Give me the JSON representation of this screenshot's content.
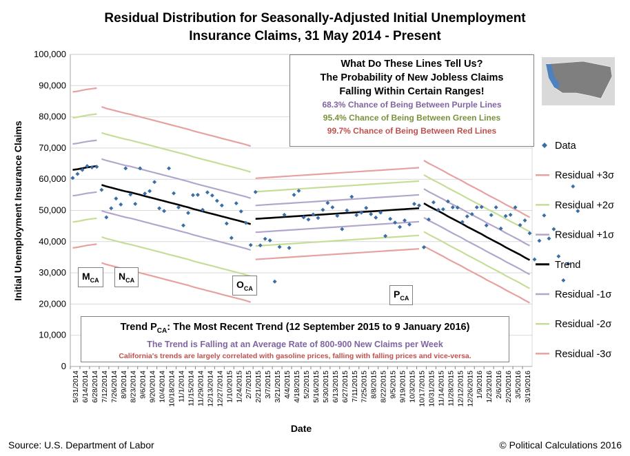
{
  "chart_data": {
    "type": "line",
    "title_line1": "Residual Distribution for Seasonally-Adjusted Initial Unemployment",
    "title_line2": "Insurance Claims, 31 May 2014 - Present",
    "xlabel": "Date",
    "ylabel": "Initial Unemployment Insurance Claims",
    "ylim": [
      0,
      100000
    ],
    "y_ticks": [
      "0",
      "10,000",
      "20,000",
      "30,000",
      "40,000",
      "50,000",
      "60,000",
      "70,000",
      "80,000",
      "90,000",
      "100,000"
    ],
    "x_ticks": [
      "5/31/2014",
      "6/14/2014",
      "6/28/2014",
      "7/12/2014",
      "7/26/2014",
      "8/9/2014",
      "8/23/2014",
      "9/6/2014",
      "9/20/2014",
      "10/4/2014",
      "10/18/2014",
      "11/1/2014",
      "11/15/2014",
      "11/29/2014",
      "12/13/2014",
      "12/27/2014",
      "1/10/2015",
      "1/24/2015",
      "2/7/2015",
      "2/21/2015",
      "3/7/2015",
      "3/21/2015",
      "4/4/2015",
      "4/18/2015",
      "5/2/2015",
      "5/16/2015",
      "5/30/2015",
      "6/13/2015",
      "6/27/2015",
      "7/11/2015",
      "7/25/2015",
      "8/8/2015",
      "8/22/2015",
      "9/5/2015",
      "9/19/2015",
      "10/3/2015",
      "10/17/2015",
      "10/31/2015",
      "11/14/2015",
      "11/28/2015",
      "12/12/2015",
      "12/26/2015",
      "1/9/2016",
      "1/23/2016",
      "2/6/2016",
      "2/20/2016",
      "3/5/2016",
      "3/19/2016"
    ],
    "legend": [
      "Data",
      "Residual +3σ",
      "Residual +2σ",
      "Residual +1σ",
      "Trend",
      "Residual -1σ",
      "Residual -2σ",
      "Residual -3σ"
    ],
    "data_points": [
      60400,
      61700,
      63000,
      64200,
      63800,
      64000,
      56600,
      47800,
      50700,
      53800,
      51900,
      63500,
      55100,
      52100,
      63500,
      55400,
      56200,
      59100,
      50700,
      49800,
      63500,
      55500,
      51000,
      45200,
      49200,
      54900,
      55000,
      50200,
      55800,
      54800,
      53100,
      51600,
      45800,
      41200,
      52300,
      49700,
      46000,
      38900,
      55900,
      38800,
      40900,
      40400,
      27200,
      38300,
      48600,
      38000,
      55000,
      56300,
      47800,
      47100,
      48700,
      47600,
      50200,
      52400,
      51000,
      48300,
      44000,
      50000,
      54400,
      48500,
      49300,
      50800,
      48800,
      47700,
      49300,
      41800,
      47300,
      46100,
      44700,
      46800,
      45500,
      52100,
      51600,
      38200,
      47100,
      52600,
      50200,
      50400,
      52900,
      51000,
      50900,
      46300,
      48100,
      48800,
      51000,
      51100,
      45200,
      48500,
      51000,
      44200,
      48200,
      48600,
      51000,
      45300,
      46800,
      42700,
      34300,
      40300,
      48400,
      41000,
      44000,
      35300,
      27600,
      32900,
      57700,
      49800
    ],
    "trend_segments": [
      {
        "name": "M",
        "values": [
          63000,
          63200,
          63500,
          63800,
          64000,
          64200
        ]
      },
      {
        "name": "N",
        "values": [
          58200,
          57700,
          57300,
          56900,
          56500,
          56100,
          55800,
          55400,
          55000,
          54600,
          54200,
          53800,
          53400,
          53000,
          52600,
          52200,
          51800,
          51400,
          51000,
          50500,
          50100,
          49700,
          49300,
          48900,
          48500,
          48100,
          47700,
          47300,
          46900,
          46500,
          46100,
          45600
        ]
      },
      {
        "name": "O",
        "values": [
          47300,
          47400,
          47500,
          47600,
          47700,
          47800,
          47900,
          48000,
          48100,
          48200,
          48300,
          48400,
          48500,
          48600,
          48700,
          48800,
          48900,
          49000,
          49100,
          49200,
          49300,
          49400,
          49500,
          49600,
          49700,
          49800,
          49900,
          50000,
          50100,
          50200,
          50300,
          50400,
          50500,
          50600,
          50700
        ]
      },
      {
        "name": "P",
        "values": [
          52300,
          51400,
          50600,
          49800,
          49000,
          48100,
          47300,
          46500,
          45700,
          44800,
          44000,
          43200,
          42400,
          41500,
          40700,
          39900,
          39100,
          38200,
          37400,
          36600,
          35800,
          34900,
          34100
        ]
      }
    ],
    "band_offsets": {
      "p3": 25000,
      "p2": 16700,
      "p1": 8300,
      "m1": -8300,
      "m2": -16700,
      "m3": -25000
    },
    "band_offsets_O": {
      "p3": 13000,
      "p2": 8700,
      "p1": 4300,
      "m1": -4300,
      "m2": -8700,
      "m3": -13000
    },
    "band_offsets_P": {
      "p3": 13700,
      "p2": 9100,
      "p1": 4600,
      "m1": -4600,
      "m2": -9100,
      "m3": -13700
    },
    "segment_labels": [
      {
        "main": "M",
        "sub": "CA"
      },
      {
        "main": "N",
        "sub": "CA"
      },
      {
        "main": "O",
        "sub": "CA"
      },
      {
        "main": "P",
        "sub": "CA"
      }
    ],
    "colors": {
      "data": "#3b6ea5",
      "p3": "#e6a1a0",
      "p2": "#c6dd98",
      "p1": "#b3a6cc",
      "trend": "#000000",
      "m1": "#b3a6cc",
      "m2": "#c6dd98",
      "m3": "#e6a1a0",
      "purple": "#8064a2",
      "green": "#77933c",
      "red": "#c0504d",
      "grid": "#d9d9d9",
      "map_highlight": "#4f81bd"
    }
  },
  "info_box": {
    "line1": "What Do These Lines Tell Us?",
    "line2": "The Probability of New Jobless Claims",
    "line3": "Falling Within Certain Ranges!",
    "purple_text": "68.3% Chance of Being Between Purple Lines",
    "green_text": "95.4% Chance of Being Between Green Lines",
    "red_text": "99.7% Chance of Being Between Red Lines"
  },
  "trend_box": {
    "title_prefix": "Trend P",
    "title_sub": "CA",
    "title_suffix": ":  The Most Recent Trend (12 September 2015 to 9 January 2016)",
    "line2": "The Trend is Falling at an Average Rate of 800-900 New Claims per Week",
    "line3": "California's  trends are largely correlated with gasoline prices, falling with falling prices and vice-versa."
  },
  "footer": {
    "source": "Source: U.S. Department of Labor",
    "copyright": "© Political Calculations 2016"
  }
}
